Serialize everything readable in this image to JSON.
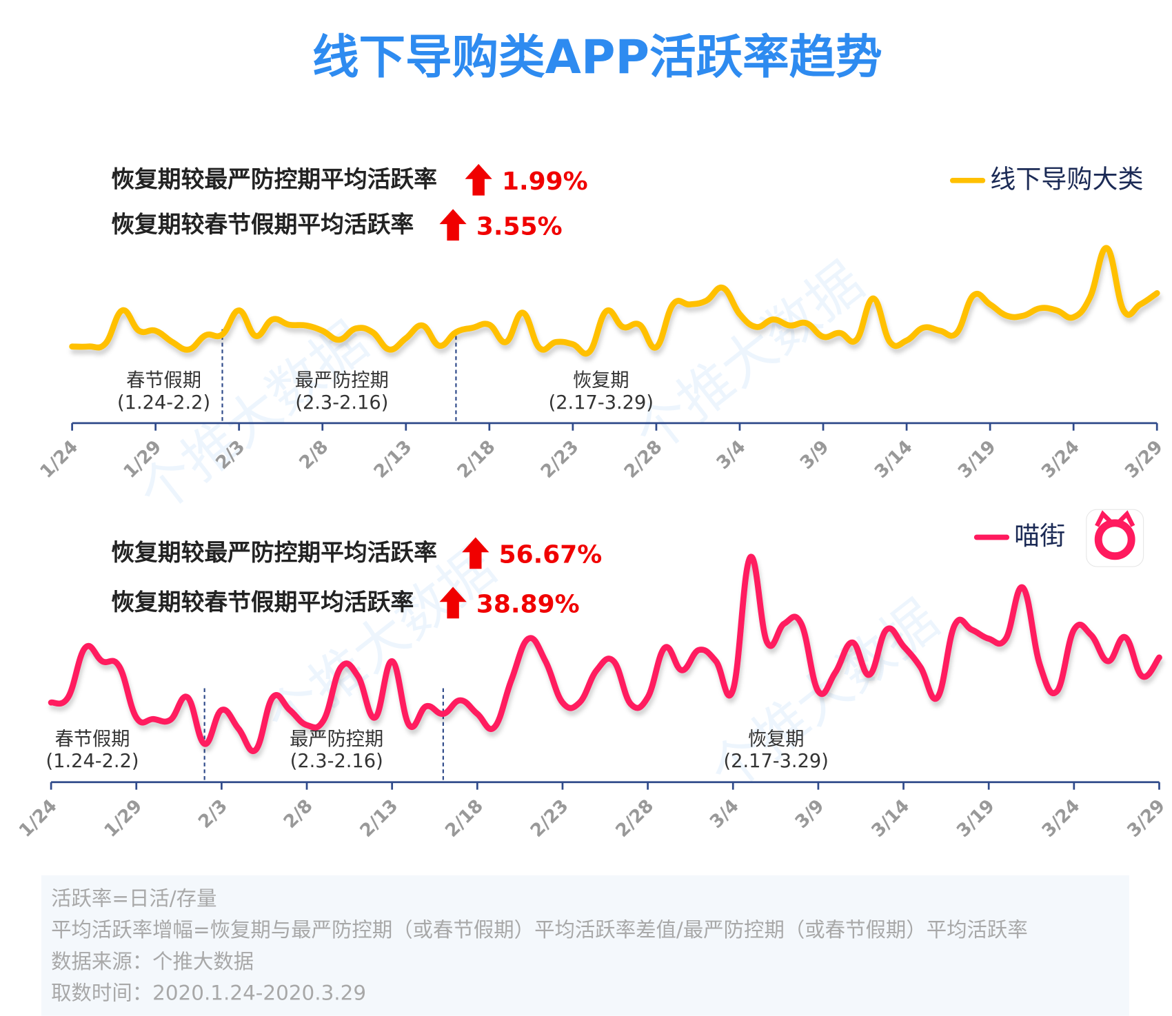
{
  "title": "线下导购类APP活跃率趋势",
  "watermark": "个推大数据",
  "footnotes": [
    "活跃率=日活/存量",
    "平均活跃率增幅=恢复期与最严防控期（或春节假期）平均活跃率差值/最严防控期（或春节假期）平均活跃率",
    "数据来源：个推大数据",
    "取数时间：2020.1.24-2020.3.29"
  ],
  "chart_data": [
    {
      "type": "line",
      "stats": [
        {
          "label": "恢复期较最严防控期平均活跃率",
          "value": "1.99%"
        },
        {
          "label": "恢复期较春节假期平均活跃率",
          "value": "3.55%"
        }
      ],
      "periods": [
        {
          "name": "春节假期",
          "range": "(1.24-2.2)"
        },
        {
          "name": "最严防控期",
          "range": "(2.3-2.16)"
        },
        {
          "name": "恢复期",
          "range": "(2.17-3.29)"
        }
      ],
      "categories": [
        "1/24",
        null,
        null,
        null,
        null,
        "1/29",
        null,
        null,
        null,
        null,
        "2/3",
        null,
        null,
        null,
        null,
        "2/8",
        null,
        null,
        null,
        null,
        "2/13",
        null,
        null,
        null,
        null,
        "2/18",
        null,
        null,
        null,
        null,
        "2/23",
        null,
        null,
        null,
        null,
        "2/28",
        null,
        null,
        null,
        null,
        "3/4",
        null,
        null,
        null,
        null,
        "3/9",
        null,
        null,
        null,
        null,
        "3/14",
        null,
        null,
        null,
        null,
        "3/19",
        null,
        null,
        null,
        null,
        "3/24",
        null,
        null,
        null,
        null,
        "3/29"
      ],
      "series": [
        {
          "name": "线下导购大类",
          "color": "#FFC000",
          "values": [
            102,
            102,
            106,
            150,
            123,
            123,
            108,
            98,
            117,
            118,
            150,
            116,
            138,
            131,
            130,
            123,
            111,
            126,
            121,
            98,
            113,
            130,
            103,
            121,
            127,
            131,
            108,
            147,
            100,
            108,
            105,
            95,
            149,
            128,
            131,
            101,
            158,
            158,
            163,
            180,
            145,
            128,
            138,
            130,
            133,
            115,
            120,
            111,
            166,
            108,
            110,
            127,
            123,
            120,
            170,
            158,
            143,
            143,
            153,
            150,
            141,
            168,
            233,
            150,
            158,
            173
          ]
        }
      ],
      "ylim": [
        0,
        250
      ]
    },
    {
      "type": "line",
      "stats": [
        {
          "label": "恢复期较最严防控期平均活跃率",
          "value": "56.67%"
        },
        {
          "label": "恢复期较春节假期平均活跃率",
          "value": "38.89%"
        }
      ],
      "periods": [
        {
          "name": "春节假期",
          "range": "(1.24-2.2)"
        },
        {
          "name": "最严防控期",
          "range": "(2.3-2.16)"
        },
        {
          "name": "恢复期",
          "range": "(2.17-3.29)"
        }
      ],
      "categories": [
        "1/24",
        null,
        null,
        null,
        null,
        "1/29",
        null,
        null,
        null,
        null,
        "2/3",
        null,
        null,
        null,
        null,
        "2/8",
        null,
        null,
        null,
        null,
        "2/13",
        null,
        null,
        null,
        null,
        "2/18",
        null,
        null,
        null,
        null,
        "2/23",
        null,
        null,
        null,
        null,
        "2/28",
        null,
        null,
        null,
        null,
        "3/4",
        null,
        null,
        null,
        null,
        "3/9",
        null,
        null,
        null,
        null,
        "3/14",
        null,
        null,
        null,
        null,
        "3/19",
        null,
        null,
        null,
        null,
        "3/24",
        null,
        null,
        null,
        null,
        "3/29"
      ],
      "series": [
        {
          "name": "喵街",
          "color": "#FF1A5E",
          "values": [
            106,
            113,
            179,
            161,
            154,
            86,
            84,
            83,
            113,
            51,
            96,
            71,
            43,
            113,
            96,
            76,
            83,
            153,
            141,
            86,
            161,
            76,
            101,
            91,
            109,
            91,
            73,
            136,
            191,
            161,
            106,
            106,
            149,
            161,
            104,
            113,
            179,
            149,
            176,
            161,
            123,
            299,
            186,
            211,
            211,
            121,
            146,
            186,
            143,
            203,
            181,
            153,
            113,
            209,
            203,
            191,
            191,
            259,
            156,
            121,
            203,
            196,
            161,
            193,
            141,
            166
          ]
        }
      ],
      "ylim": [
        0,
        320
      ]
    }
  ]
}
